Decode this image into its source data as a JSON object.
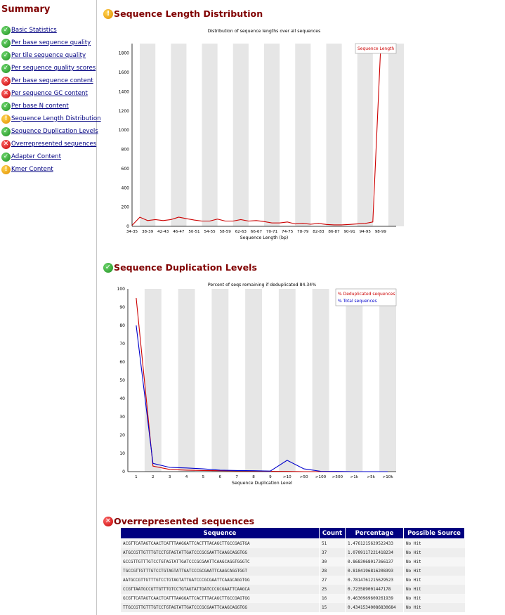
{
  "sidebar": {
    "title": "Summary",
    "items": [
      {
        "label": "Basic Statistics",
        "status": "pass"
      },
      {
        "label": "Per base sequence quality",
        "status": "pass"
      },
      {
        "label": "Per tile sequence quality",
        "status": "pass"
      },
      {
        "label": "Per sequence quality scores",
        "status": "pass"
      },
      {
        "label": "Per base sequence content",
        "status": "fail"
      },
      {
        "label": "Per sequence GC content",
        "status": "fail"
      },
      {
        "label": "Per base N content",
        "status": "pass"
      },
      {
        "label": "Sequence Length Distribution",
        "status": "warn"
      },
      {
        "label": "Sequence Duplication Levels",
        "status": "pass"
      },
      {
        "label": "Overrepresented sequences",
        "status": "fail"
      },
      {
        "label": "Adapter Content",
        "status": "pass"
      },
      {
        "label": "Kmer Content",
        "status": "warn"
      }
    ]
  },
  "status_glyphs": {
    "pass": "✓",
    "warn": "!",
    "fail": "✕"
  },
  "colors": {
    "title": "#800000",
    "link": "#000080",
    "table_header": "#000080",
    "series_red": "#cc0000",
    "series_blue": "#0000cc",
    "band": "#e6e6e6"
  },
  "modules": {
    "length": {
      "title": "Sequence Length Distribution",
      "status": "warn"
    },
    "duplication": {
      "title": "Sequence Duplication Levels",
      "status": "pass"
    },
    "overrep": {
      "title": "Overrepresented sequences",
      "status": "fail"
    }
  },
  "chart_data": [
    {
      "type": "line",
      "title": "Distribution of sequence lengths over all sequences",
      "xlabel": "Sequence Length (bp)",
      "ylabel": "",
      "ylim": [
        0,
        1900
      ],
      "yticks": [
        0,
        200,
        400,
        600,
        800,
        1000,
        1200,
        1400,
        1600,
        1800
      ],
      "grid": "alternating vertical bands",
      "legend": "top-right",
      "categories": [
        "34-35",
        "38-39",
        "42-43",
        "46-47",
        "50-51",
        "54-55",
        "58-59",
        "62-63",
        "66-67",
        "70-71",
        "74-75",
        "78-79",
        "82-83",
        "86-87",
        "90-91",
        "94-95",
        "98-99"
      ],
      "series": [
        {
          "name": "Sequence Length",
          "color": "#cc0000",
          "x": [
            34,
            36,
            38,
            40,
            42,
            44,
            46,
            48,
            50,
            52,
            54,
            56,
            58,
            60,
            62,
            64,
            66,
            68,
            70,
            72,
            74,
            76,
            78,
            80,
            82,
            84,
            86,
            88,
            90,
            92,
            94,
            96,
            98,
            99
          ],
          "values": [
            10,
            95,
            60,
            70,
            60,
            70,
            95,
            80,
            65,
            55,
            55,
            75,
            55,
            55,
            70,
            55,
            60,
            50,
            35,
            35,
            45,
            25,
            30,
            22,
            30,
            20,
            15,
            15,
            20,
            25,
            30,
            45,
            1850,
            1850
          ]
        }
      ]
    },
    {
      "type": "line",
      "title": "Percent of seqs remaining if deduplicated 84.34%",
      "xlabel": "Sequence Duplication Level",
      "ylabel": "",
      "ylim": [
        0,
        100
      ],
      "yticks": [
        0,
        10,
        20,
        30,
        40,
        50,
        60,
        70,
        80,
        90,
        100
      ],
      "grid": "alternating vertical bands",
      "legend": "top-right",
      "categories": [
        "1",
        "2",
        "3",
        "4",
        "5",
        "6",
        "7",
        "8",
        "9",
        ">10",
        ">50",
        ">100",
        ">500",
        ">1k",
        ">5k",
        ">10k"
      ],
      "series": [
        {
          "name": "% Deduplicated sequences",
          "color": "#cc0000",
          "values": [
            95,
            3,
            1.2,
            0.8,
            0.6,
            0.5,
            0.4,
            0.3,
            0.2,
            0.1,
            0,
            0,
            0,
            0,
            0,
            0
          ]
        },
        {
          "name": "% Total sequences",
          "color": "#0000cc",
          "values": [
            80,
            4.5,
            2.3,
            2,
            1.5,
            0.8,
            0.6,
            0.5,
            0.3,
            6.2,
            1.5,
            0.2,
            0.1,
            0,
            0,
            0
          ]
        }
      ]
    }
  ],
  "overrep_table": {
    "headers": [
      "Sequence",
      "Count",
      "Percentage",
      "Possible Source"
    ],
    "rows": [
      [
        "ACGTTCATAGTCAACTCATTTAAGGATTCACTTTACAGCTTGCCGAGTGA",
        "51",
        "1.4761215629522433",
        "No Hit"
      ],
      [
        "ATGCCGTTGTTTGTCCTGTAGTATTGATCCCGCGAATTCAAGCAGGTGG",
        "37",
        "1.0709117221418234",
        "No Hit"
      ],
      [
        "GCCGTTGTTTGTCCTGTAGTATTGATCCCGCGAATTCAAGCAGGTGGGTC",
        "30",
        "0.8683068017366137",
        "No Hit"
      ],
      [
        "TGCCGTTGTTTGTCCTGTAGTATTGATCCCGCGAATTCAAGCAGGTGGT",
        "28",
        "0.8104196816208393",
        "No Hit"
      ],
      [
        "AATGCCGTTGTTTGTCCTGTAGTATTGATCCCGCGAATTCAAGCAGGTGG",
        "27",
        "0.7814761215629523",
        "No Hit"
      ],
      [
        "CCGTTAATGCCGTTGTTTGTCCTGTAGTATTGATCCCGCGAATTCAAGCA",
        "25",
        "0.723589001447178",
        "No Hit"
      ],
      [
        "GCGTTCATAGTCAACTCATTTAAGGATTCACTTTACAGCTTGCCGAGTGG",
        "16",
        "0.4630969609261939",
        "No Hit"
      ],
      [
        "TTGCCGTTGTTTGTCCTGTAGTATTGATCCCGCGAATTCAAGCAGGTGG",
        "15",
        "0.43415340086830684",
        "No Hit"
      ]
    ]
  }
}
